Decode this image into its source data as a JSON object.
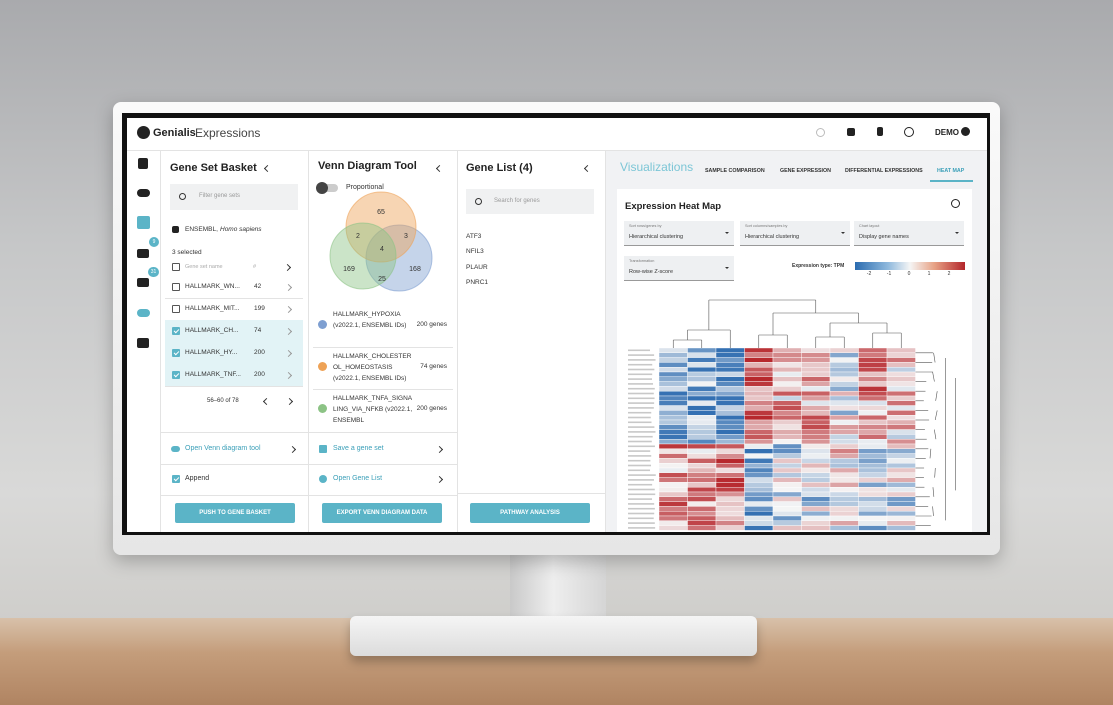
{
  "header": {
    "brand": "Genialis",
    "product": "Expressions",
    "user": "DEMO"
  },
  "sidebar_badges": [
    "9",
    "31"
  ],
  "gene_set_basket": {
    "title": "Gene Set Basket",
    "search_placeholder": "Filter gene sets",
    "species_source": "ENSEMBL,",
    "species": "Homo sapiens",
    "selected": "3 selected",
    "column_name": "Gene set name",
    "column_count": "#",
    "rows": [
      {
        "name": "HALLMARK_WN...",
        "count": 42,
        "checked": false
      },
      {
        "name": "HALLMARK_MIT...",
        "count": 199,
        "checked": false
      },
      {
        "name": "HALLMARK_CH...",
        "count": 74,
        "checked": true
      },
      {
        "name": "HALLMARK_HY...",
        "count": 200,
        "checked": true
      },
      {
        "name": "HALLMARK_TNF...",
        "count": 200,
        "checked": true
      }
    ],
    "pagination": "56–60 of 78",
    "open_venn": "Open Venn diagram tool",
    "append": "Append",
    "button": "PUSH TO GENE BASKET"
  },
  "venn": {
    "title": "Venn Diagram Tool",
    "toggle": "Proportional",
    "region_counts": [
      65,
      2,
      3,
      4,
      169,
      25,
      168
    ],
    "sets": [
      {
        "name": "HALLMARK_HYPOXIA (v2022.1, ENSEMBL IDs)",
        "genes": "200 genes",
        "color": "#7e9fd1"
      },
      {
        "name": "HALLMARK_CHOLESTEROL_HOMEOSTASIS (v2022.1, ENSEMBL IDs)",
        "genes": "74 genes",
        "color": "#eea256"
      },
      {
        "name": "HALLMARK_TNFA_SIGNALING_VIA_NFKB (v2022.1, ENSEMBL",
        "genes": "200 genes",
        "color": "#8cc385"
      }
    ],
    "save": "Save a gene set",
    "open": "Open Gene List",
    "button": "EXPORT VENN DIAGRAM DATA"
  },
  "gene_list": {
    "title": "Gene List (4)",
    "search_placeholder": "Search for genes",
    "genes": [
      "ATF3",
      "NFIL3",
      "PLAUR",
      "PNRC1"
    ],
    "button": "PATHWAY ANALYSIS"
  },
  "visualizations": {
    "title": "Visualizations",
    "tabs": [
      "SAMPLE COMPARISON",
      "GENE EXPRESSION",
      "DIFFERENTIAL EXPRESSIONS",
      "HEAT MAP"
    ],
    "card": {
      "title": "Expression Heat Map",
      "selects": [
        {
          "label": "Sort rows/genes by",
          "value": "Hierarchical clustering"
        },
        {
          "label": "Sort columns/samples by",
          "value": "Hierarchical clustering"
        },
        {
          "label": "Chart layout",
          "value": "Display gene names"
        },
        {
          "label": "Transformation",
          "value": "Row-wise Z-score"
        }
      ],
      "legend": {
        "title": "Expression type: TPM",
        "ticks": [
          -2,
          -1,
          0,
          1,
          2
        ]
      }
    }
  }
}
